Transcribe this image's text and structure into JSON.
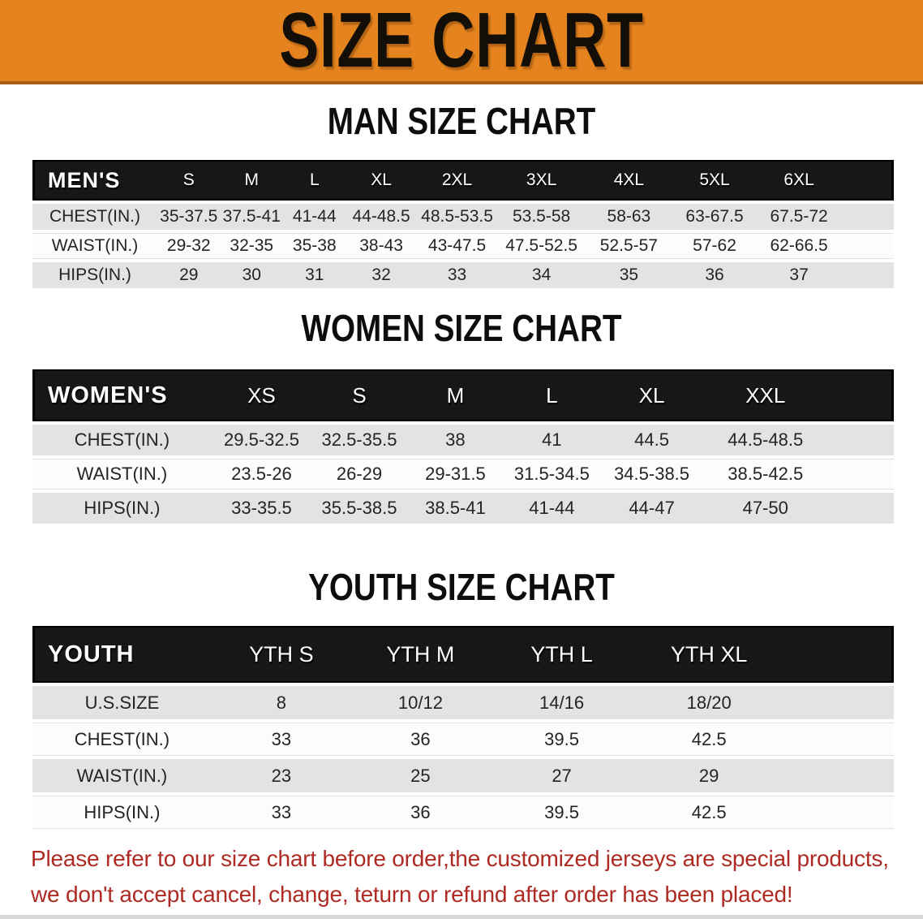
{
  "banner": {
    "title": "SIZE CHART",
    "bg_color": "#e5831f",
    "title_color": "#140e08"
  },
  "sections": [
    {
      "heading": "MAN SIZE CHART",
      "table": {
        "corner_label": "MEN'S",
        "columns": [
          "S",
          "M",
          "L",
          "XL",
          "2XL",
          "3XL",
          "4XL",
          "5XL",
          "6XL"
        ],
        "rows": [
          {
            "label": "CHEST(IN.)",
            "values": [
              "35-37.5",
              "37.5-41",
              "41-44",
              "44-48.5",
              "48.5-53.5",
              "53.5-58",
              "58-63",
              "63-67.5",
              "67.5-72"
            ]
          },
          {
            "label": "WAIST(IN.)",
            "values": [
              "29-32",
              "32-35",
              "35-38",
              "38-43",
              "43-47.5",
              "47.5-52.5",
              "52.5-57",
              "57-62",
              "62-66.5"
            ]
          },
          {
            "label": "HIPS(IN.)",
            "values": [
              "29",
              "30",
              "31",
              "32",
              "33",
              "34",
              "35",
              "36",
              "37"
            ]
          }
        ]
      }
    },
    {
      "heading": "WOMEN SIZE CHART",
      "table": {
        "corner_label": "WOMEN'S",
        "columns": [
          "XS",
          "S",
          "M",
          "L",
          "XL",
          "XXL"
        ],
        "rows": [
          {
            "label": "CHEST(IN.)",
            "values": [
              "29.5-32.5",
              "32.5-35.5",
              "38",
              "41",
              "44.5",
              "44.5-48.5"
            ]
          },
          {
            "label": "WAIST(IN.)",
            "values": [
              "23.5-26",
              "26-29",
              "29-31.5",
              "31.5-34.5",
              "34.5-38.5",
              "38.5-42.5"
            ]
          },
          {
            "label": "HIPS(IN.)",
            "values": [
              "33-35.5",
              "35.5-38.5",
              "38.5-41",
              "41-44",
              "44-47",
              "47-50"
            ]
          }
        ]
      }
    },
    {
      "heading": "YOUTH SIZE CHART",
      "table": {
        "corner_label": "YOUTH",
        "columns": [
          "YTH S",
          "YTH M",
          "YTH L",
          "YTH XL"
        ],
        "rows": [
          {
            "label": "U.S.SIZE",
            "values": [
              "8",
              "10/12",
              "14/16",
              "18/20"
            ]
          },
          {
            "label": "CHEST(IN.)",
            "values": [
              "33",
              "36",
              "39.5",
              "42.5"
            ]
          },
          {
            "label": "WAIST(IN.)",
            "values": [
              "23",
              "25",
              "27",
              "29"
            ]
          },
          {
            "label": "HIPS(IN.)",
            "values": [
              "33",
              "36",
              "39.5",
              "42.5"
            ]
          }
        ]
      }
    }
  ],
  "footer": {
    "line1": "Please refer to our size chart before order,the customized jerseys are special products,",
    "line2": "we don't accept cancel, change, teturn or refund after order has been placed!",
    "text_color": "#ae2b23"
  },
  "colors": {
    "header_band": "#171717",
    "row_gray": "#e3e3e5",
    "row_white": "#fcfcfc"
  }
}
